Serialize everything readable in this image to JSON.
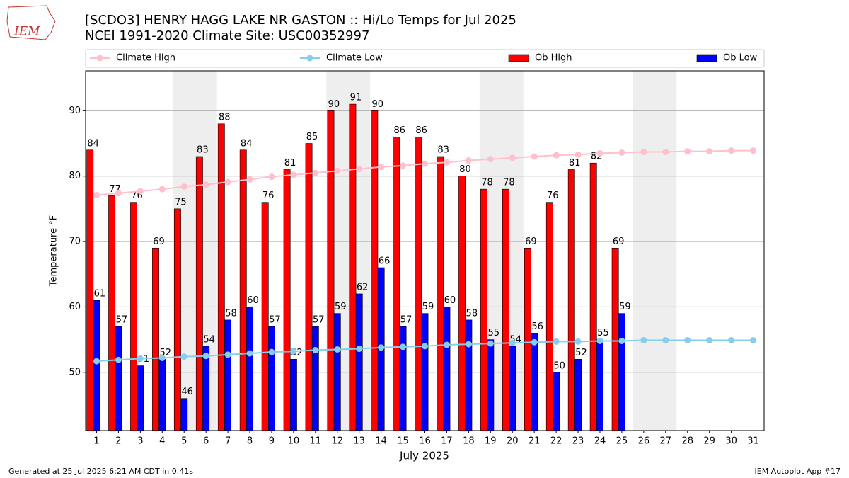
{
  "chart_data": {
    "type": "bar",
    "title": "[SCDO3] HENRY HAGG LAKE NR GASTON :: Hi/Lo Temps for Jul 2025",
    "subtitle": "NCEI 1991-2020 Climate Site: USC00352997",
    "x_label": "July 2025",
    "y_label": "Temperature °F",
    "logo_text": "IEM",
    "footer_left": "Generated at 25 Jul 2025 6:21 AM CDT in 0.41s",
    "footer_right": "IEM Autoplot App #17",
    "x": [
      1,
      2,
      3,
      4,
      5,
      6,
      7,
      8,
      9,
      10,
      11,
      12,
      13,
      14,
      15,
      16,
      17,
      18,
      19,
      20,
      21,
      22,
      23,
      24,
      25,
      26,
      27,
      28,
      29,
      30,
      31
    ],
    "xlim": [
      0.5,
      31.5
    ],
    "xticks": [
      1,
      2,
      3,
      4,
      5,
      6,
      7,
      8,
      9,
      10,
      11,
      12,
      13,
      14,
      15,
      16,
      17,
      18,
      19,
      20,
      21,
      22,
      23,
      24,
      25,
      26,
      27,
      28,
      29,
      30,
      31
    ],
    "ylim": [
      41.1,
      96.1
    ],
    "yticks": [
      50,
      60,
      70,
      80,
      90
    ],
    "grid": true,
    "shaded_ranges": [
      [
        4.5,
        6.5
      ],
      [
        11.5,
        13.5
      ],
      [
        18.5,
        20.5
      ],
      [
        25.5,
        27.5
      ]
    ],
    "series": [
      {
        "name": "Climate High",
        "kind": "line",
        "color": "#ffc0cb",
        "values": [
          77.1,
          77.4,
          77.7,
          78.0,
          78.4,
          78.7,
          79.1,
          79.5,
          79.9,
          80.2,
          80.5,
          80.8,
          81.1,
          81.4,
          81.6,
          81.9,
          82.1,
          82.4,
          82.6,
          82.8,
          83.0,
          83.2,
          83.3,
          83.5,
          83.6,
          83.7,
          83.7,
          83.8,
          83.8,
          83.9,
          83.9
        ]
      },
      {
        "name": "Climate Low",
        "kind": "line",
        "color": "#87ceeb",
        "values": [
          51.7,
          51.9,
          52.1,
          52.2,
          52.4,
          52.5,
          52.7,
          52.9,
          53.1,
          53.2,
          53.4,
          53.5,
          53.6,
          53.8,
          53.9,
          54.0,
          54.2,
          54.3,
          54.4,
          54.5,
          54.6,
          54.7,
          54.7,
          54.8,
          54.8,
          54.9,
          54.9,
          54.9,
          54.9,
          54.9,
          54.9
        ]
      },
      {
        "name": "Ob High",
        "kind": "bar",
        "color": "#ff0000",
        "values": [
          84,
          77,
          76,
          69,
          75,
          83,
          88,
          84,
          76,
          81,
          85,
          90,
          91,
          90,
          86,
          86,
          83,
          80,
          78,
          78,
          69,
          76,
          81,
          82,
          69,
          null,
          null,
          null,
          null,
          null,
          null
        ]
      },
      {
        "name": "Ob Low",
        "kind": "bar",
        "color": "#0000ff",
        "values": [
          61,
          57,
          51,
          52,
          46,
          54,
          58,
          60,
          57,
          52,
          57,
          59,
          62,
          66,
          57,
          59,
          60,
          58,
          55,
          54,
          56,
          50,
          52,
          55,
          59,
          null,
          null,
          null,
          null,
          null,
          null
        ]
      }
    ]
  }
}
